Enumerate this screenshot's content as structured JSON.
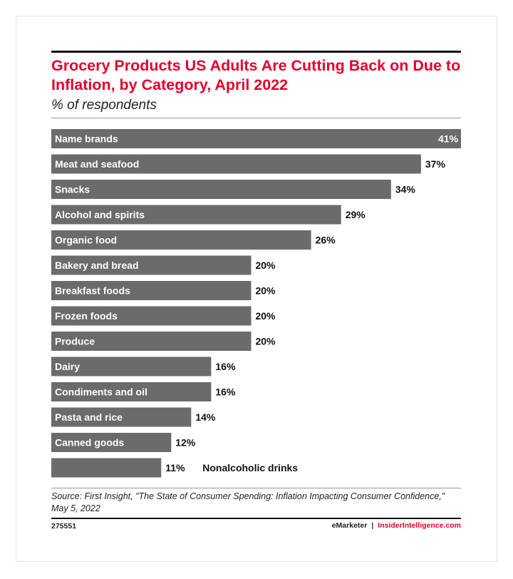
{
  "header": {
    "title": "Grocery Products US Adults Are Cutting Back on Due to Inflation, by Category, April 2022",
    "subtitle": "% of respondents"
  },
  "chart_data": {
    "type": "bar",
    "orientation": "horizontal",
    "title": "Grocery Products US Adults Are Cutting Back on Due to Inflation, by Category, April 2022",
    "subtitle": "% of respondents",
    "categories": [
      "Name brands",
      "Meat and seafood",
      "Snacks",
      "Alcohol and spirits",
      "Organic food",
      "Bakery and bread",
      "Breakfast foods",
      "Frozen foods",
      "Produce",
      "Dairy",
      "Condiments and oil",
      "Pasta and rice",
      "Canned goods",
      "Nonalcoholic drinks"
    ],
    "values": [
      41,
      37,
      34,
      29,
      26,
      20,
      20,
      20,
      20,
      16,
      16,
      14,
      12,
      11
    ],
    "value_labels": [
      "41%",
      "37%",
      "34%",
      "29%",
      "26%",
      "20%",
      "20%",
      "20%",
      "20%",
      "16%",
      "16%",
      "14%",
      "12%",
      "11%"
    ],
    "xlim": [
      0,
      41
    ],
    "bar_color": "#6b6b6b",
    "grid": false,
    "legend": "none"
  },
  "footer": {
    "source": "Source: First Insight, \"The State of Consumer Spending: Inflation Impacting Consumer Confidence,\" May 5, 2022",
    "chart_id": "275551",
    "brand_left": "eMarketer",
    "brand_sep": "|",
    "brand_right": "InsiderIntelligence.com"
  },
  "colors": {
    "title": "#e4002b",
    "bar": "#6b6b6b",
    "brand_accent": "#e4002b"
  }
}
